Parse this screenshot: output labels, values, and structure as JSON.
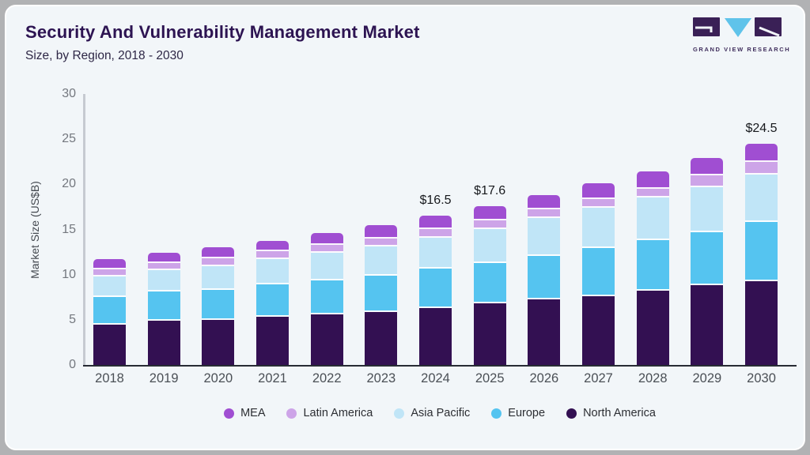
{
  "header": {
    "title": "Security And Vulnerability Management Market",
    "subtitle": "Size, by Region, 2018 - 2030",
    "logo_text": "GRAND VIEW RESEARCH"
  },
  "chart_data": {
    "type": "bar",
    "stacked": true,
    "title": "Security And Vulnerability Management Market Size, by Region, 2018 - 2030",
    "xlabel": "",
    "ylabel": "Market Size (US$B)",
    "ylim": [
      0,
      30
    ],
    "yticks": [
      0,
      5,
      10,
      15,
      20,
      25,
      30
    ],
    "grid": false,
    "legend_position": "bottom",
    "categories": [
      "2018",
      "2019",
      "2020",
      "2021",
      "2022",
      "2023",
      "2024",
      "2025",
      "2026",
      "2027",
      "2028",
      "2029",
      "2030"
    ],
    "series": [
      {
        "name": "North America",
        "color": "#331052",
        "values": [
          4.5,
          4.9,
          5.0,
          5.3,
          5.6,
          5.9,
          6.3,
          6.8,
          7.3,
          7.6,
          8.2,
          8.8,
          9.3
        ]
      },
      {
        "name": "Europe",
        "color": "#55c4f0",
        "values": [
          3.0,
          3.2,
          3.3,
          3.6,
          3.8,
          4.0,
          4.4,
          4.5,
          4.8,
          5.3,
          5.6,
          5.9,
          6.5
        ]
      },
      {
        "name": "Asia Pacific",
        "color": "#c0e5f7",
        "values": [
          2.3,
          2.4,
          2.6,
          2.8,
          3.0,
          3.2,
          3.4,
          3.7,
          4.2,
          4.5,
          4.7,
          5.0,
          5.3
        ]
      },
      {
        "name": "Latin America",
        "color": "#cda4e8",
        "values": [
          0.8,
          0.8,
          0.9,
          0.9,
          0.9,
          0.9,
          0.9,
          1.0,
          0.9,
          1.0,
          1.0,
          1.3,
          1.4
        ]
      },
      {
        "name": "MEA",
        "color": "#a04ed2",
        "values": [
          1.1,
          1.1,
          1.2,
          1.1,
          1.3,
          1.5,
          1.5,
          1.6,
          1.6,
          1.7,
          1.9,
          1.9,
          2.0
        ]
      }
    ],
    "totals": [
      11.7,
      12.4,
      13.0,
      13.7,
      14.6,
      15.5,
      16.5,
      17.6,
      18.8,
      20.1,
      21.4,
      22.9,
      24.5
    ],
    "value_labels": {
      "2024": "$16.5",
      "2025": "$17.6",
      "2030": "$24.5"
    }
  },
  "logo_colors": {
    "mark": "#3a2056",
    "triangle": "#5fc3ea"
  }
}
